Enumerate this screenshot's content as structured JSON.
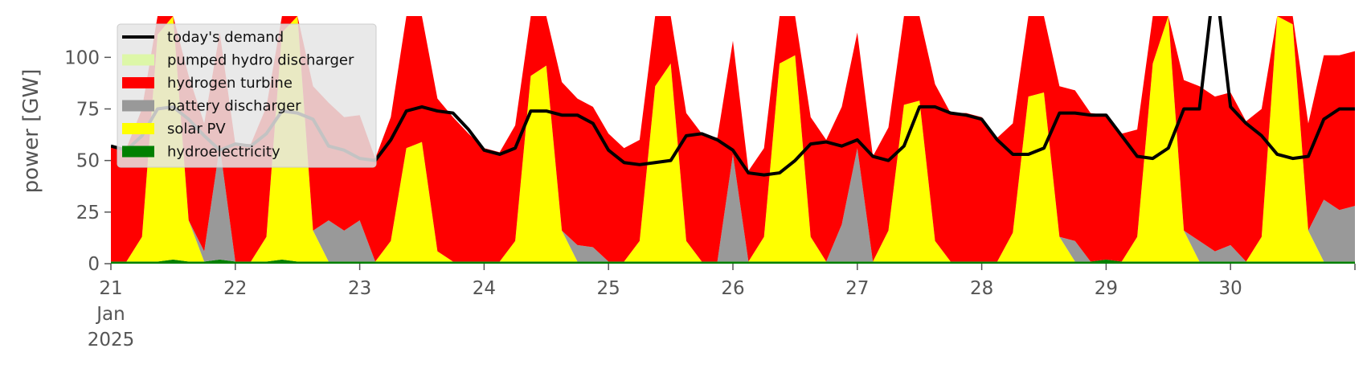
{
  "chart_data": {
    "type": "area",
    "ylabel": "power [GW]",
    "xlabel": "",
    "ylim": [
      0,
      120
    ],
    "xlim": [
      0,
      240
    ],
    "grid": false,
    "legend_position": "top-left",
    "yticks": [
      0,
      25,
      50,
      75,
      100
    ],
    "xticks": [
      {
        "hours": 0,
        "lines": [
          "21",
          "Jan",
          "2025"
        ]
      },
      {
        "hours": 24,
        "lines": [
          "22"
        ]
      },
      {
        "hours": 48,
        "lines": [
          "23"
        ]
      },
      {
        "hours": 72,
        "lines": [
          "24"
        ]
      },
      {
        "hours": 96,
        "lines": [
          "25"
        ]
      },
      {
        "hours": 120,
        "lines": [
          "26"
        ]
      },
      {
        "hours": 144,
        "lines": [
          "27"
        ]
      },
      {
        "hours": 168,
        "lines": [
          "28"
        ]
      },
      {
        "hours": 192,
        "lines": [
          "29"
        ]
      },
      {
        "hours": 216,
        "lines": [
          "30"
        ]
      }
    ],
    "x_hours": [
      0,
      3,
      6,
      9,
      12,
      15,
      18,
      21,
      24,
      27,
      30,
      33,
      36,
      39,
      42,
      45,
      48,
      51,
      54,
      57,
      60,
      63,
      66,
      69,
      72,
      75,
      78,
      81,
      84,
      87,
      90,
      93,
      96,
      99,
      102,
      105,
      108,
      111,
      114,
      117,
      120,
      123,
      126,
      129,
      132,
      135,
      138,
      141,
      144,
      147,
      150,
      153,
      156,
      159,
      162,
      165,
      168,
      171,
      174,
      177,
      180,
      183,
      186,
      189,
      192,
      195,
      198,
      201,
      204,
      207,
      210,
      213,
      216,
      219,
      222,
      225,
      228,
      231,
      234,
      237,
      240
    ],
    "legend": [
      {
        "label": "today's demand",
        "color": "#000000",
        "kind": "line"
      },
      {
        "label": "pumped hydro discharger",
        "color": "#ddf7a8",
        "kind": "patch"
      },
      {
        "label": "hydrogen turbine",
        "color": "#ff0000",
        "kind": "patch"
      },
      {
        "label": "battery discharger",
        "color": "#999999",
        "kind": "patch"
      },
      {
        "label": "solar PV",
        "color": "#ffff00",
        "kind": "patch"
      },
      {
        "label": "hydroelectricity",
        "color": "#008000",
        "kind": "patch"
      }
    ],
    "stack_order_bottom_up": [
      "hydroelectricity",
      "solar PV",
      "battery discharger",
      "hydrogen turbine",
      "pumped hydro discharger"
    ],
    "series": [
      {
        "name": "hydroelectricity",
        "color": "#008000",
        "values": [
          1,
          1,
          1,
          1,
          2,
          1,
          1,
          2,
          1,
          1,
          1,
          2,
          1,
          1,
          1,
          1,
          1,
          1,
          1,
          1,
          1,
          1,
          1,
          1,
          1,
          1,
          1,
          1,
          1,
          1,
          1,
          1,
          1,
          1,
          1,
          1,
          1,
          1,
          1,
          1,
          1,
          1,
          1,
          1,
          1,
          1,
          1,
          1,
          1,
          1,
          1,
          1,
          1,
          1,
          1,
          1,
          1,
          1,
          1,
          1,
          1,
          1,
          1,
          1,
          2,
          1,
          1,
          1,
          1,
          1,
          1,
          1,
          1,
          1,
          1,
          1,
          1,
          1,
          1,
          1,
          1
        ]
      },
      {
        "name": "solar PV",
        "color": "#ffff00",
        "values": [
          0,
          0,
          12,
          110,
          120,
          20,
          0,
          0,
          0,
          0,
          12,
          110,
          120,
          15,
          0,
          0,
          0,
          0,
          10,
          55,
          58,
          5,
          0,
          0,
          0,
          0,
          10,
          90,
          95,
          15,
          0,
          0,
          0,
          0,
          10,
          85,
          96,
          10,
          0,
          0,
          0,
          0,
          12,
          96,
          100,
          12,
          0,
          0,
          0,
          0,
          15,
          76,
          78,
          10,
          0,
          0,
          0,
          0,
          14,
          80,
          82,
          12,
          0,
          0,
          0,
          0,
          12,
          96,
          120,
          15,
          0,
          0,
          0,
          0,
          12,
          120,
          115,
          15,
          0,
          0,
          0
        ]
      },
      {
        "name": "battery discharger",
        "color": "#999999",
        "values": [
          0,
          0,
          0,
          0,
          0,
          0,
          5,
          55,
          0,
          0,
          0,
          0,
          0,
          0,
          20,
          15,
          20,
          0,
          0,
          0,
          0,
          0,
          0,
          0,
          0,
          0,
          0,
          0,
          0,
          0,
          8,
          7,
          0,
          0,
          0,
          0,
          0,
          0,
          0,
          0,
          52,
          0,
          0,
          0,
          0,
          0,
          0,
          18,
          55,
          0,
          0,
          0,
          0,
          0,
          0,
          0,
          0,
          0,
          0,
          0,
          0,
          0,
          10,
          0,
          0,
          0,
          0,
          0,
          0,
          0,
          10,
          5,
          8,
          0,
          0,
          0,
          0,
          0,
          30,
          25,
          27
        ]
      },
      {
        "name": "hydrogen turbine",
        "color": "#ff0000",
        "values": [
          56,
          55,
          62,
          75,
          76,
          70,
          62,
          55,
          57,
          57,
          63,
          74,
          73,
          70,
          57,
          55,
          51,
          50,
          60,
          74,
          76,
          74,
          70,
          62,
          55,
          53,
          56,
          74,
          75,
          72,
          71,
          68,
          62,
          55,
          49,
          49,
          50,
          62,
          62,
          60,
          55,
          44,
          43,
          44,
          50,
          58,
          59,
          57,
          56,
          51,
          50,
          56,
          75,
          76,
          72,
          72,
          70,
          60,
          53,
          53,
          56,
          73,
          73,
          72,
          70,
          62,
          52,
          51,
          56,
          73,
          75,
          75,
          74,
          68,
          62,
          53,
          51,
          52,
          70,
          75,
          75
        ]
      },
      {
        "name": "pumped hydro discharger",
        "color": "#ddf7a8",
        "values": [
          0,
          0,
          0,
          0,
          0,
          0,
          0,
          0,
          0,
          0,
          0,
          0,
          0,
          0,
          0,
          0,
          0,
          0,
          0,
          0,
          0,
          0,
          0,
          0,
          0,
          0,
          0,
          0,
          0,
          0,
          0,
          0,
          0,
          0,
          0,
          0,
          0,
          0,
          0,
          0,
          0,
          0,
          0,
          0,
          0,
          0,
          0,
          0,
          0,
          0,
          0,
          0,
          0,
          0,
          0,
          0,
          0,
          0,
          0,
          0,
          0,
          0,
          0,
          0,
          0,
          0,
          0,
          0,
          0,
          0,
          0,
          0,
          0,
          0,
          0,
          0,
          0,
          0,
          0,
          0,
          0
        ]
      },
      {
        "name": "today's demand",
        "color": "#000000",
        "values": [
          57,
          55,
          62,
          75,
          76,
          70,
          62,
          55,
          58,
          57,
          63,
          74,
          73,
          70,
          57,
          55,
          51,
          50,
          60,
          74,
          76,
          74,
          73,
          65,
          55,
          53,
          56,
          74,
          74,
          72,
          72,
          68,
          55,
          49,
          48,
          49,
          50,
          62,
          63,
          60,
          55,
          44,
          43,
          44,
          50,
          58,
          59,
          57,
          60,
          52,
          50,
          57,
          76,
          76,
          73,
          72,
          70,
          60,
          53,
          53,
          56,
          73,
          73,
          72,
          72,
          62,
          52,
          51,
          56,
          75,
          75,
          140,
          76,
          68,
          62,
          53,
          51,
          52,
          70,
          75,
          75
        ]
      }
    ]
  }
}
